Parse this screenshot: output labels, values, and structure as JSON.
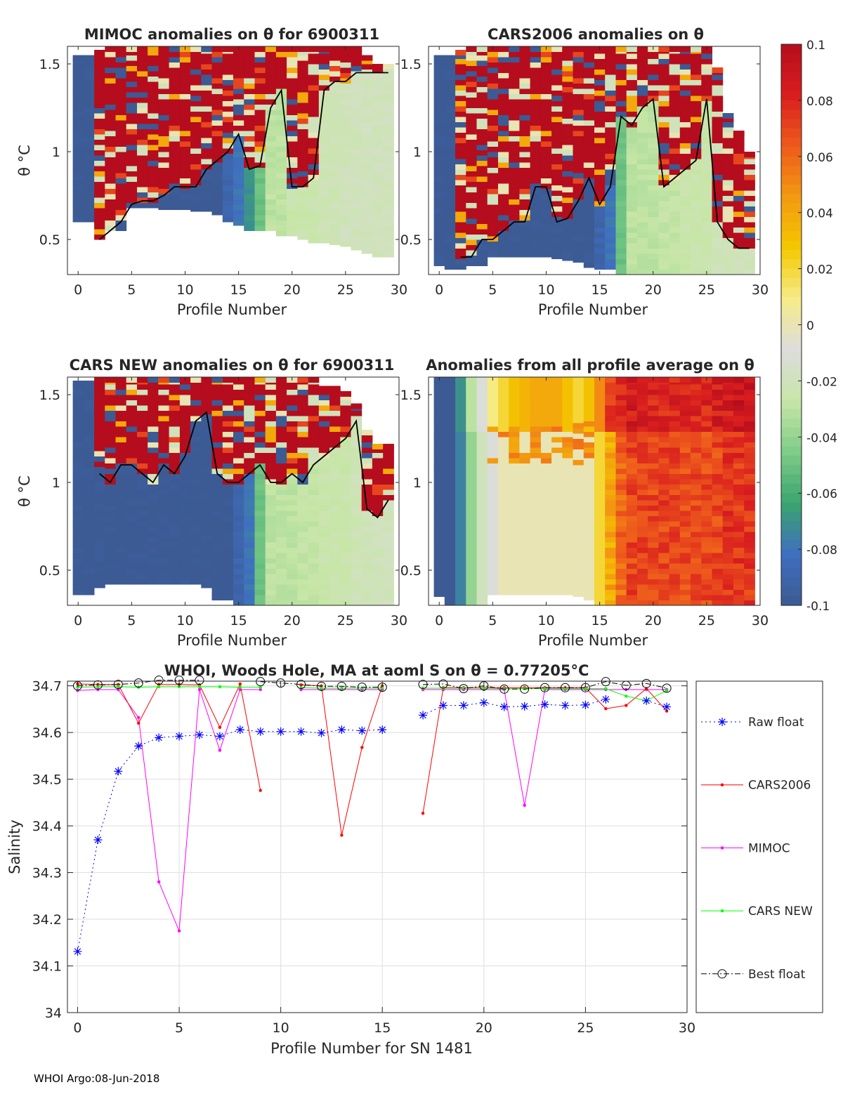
{
  "colors": {
    "axis": "#262626",
    "grid": "#dedede",
    "raw_float": "#0000ff",
    "cars2006": "#ff0000",
    "mimoc": "#ff00ff",
    "cars_new": "#00ff00",
    "best_float": "#000000",
    "empty": "#ffffff"
  },
  "colorbar": {
    "ticks": [
      "0.1",
      "0.08",
      "0.06",
      "0.04",
      "0.02",
      "0",
      "-0.02",
      "-0.04",
      "-0.06",
      "-0.08",
      "-0.1"
    ],
    "range": [
      -0.1,
      0.1
    ],
    "stops": [
      "#3c5a93",
      "#3f6fc0",
      "#3aa56e",
      "#7ecb88",
      "#c7e6a6",
      "#dcdcdc",
      "#f6ec8a",
      "#f4c800",
      "#f39a10",
      "#ee5a1c",
      "#d91e1e",
      "#b50d1d"
    ]
  },
  "chart_data": [
    {
      "type": "heatmap",
      "id": "mimoc",
      "title": "MIMOC anomalies on θ  for 6900311",
      "xlabel": "Profile Number",
      "ylabel": "θ °C",
      "xlim": [
        -1,
        30
      ],
      "ylim": [
        0.3,
        1.6
      ],
      "xticks": [
        0,
        5,
        10,
        15,
        20,
        25,
        30
      ],
      "yticks": [
        0.5,
        1,
        1.5
      ],
      "bottom_theta": [
        0.6,
        0.6,
        0.5,
        0.55,
        0.55,
        0.68,
        0.68,
        0.68,
        0.67,
        0.67,
        0.67,
        0.66,
        0.66,
        0.64,
        0.6,
        0.58,
        0.55,
        0.55,
        0.55,
        0.52,
        0.52,
        0.5,
        0.48,
        0.48,
        0.47,
        0.46,
        0.44,
        0.42,
        0.4,
        0.4
      ],
      "top_theta": [
        1.55,
        1.55,
        1.58,
        1.6,
        1.6,
        1.6,
        1.6,
        1.6,
        1.6,
        1.6,
        1.6,
        1.6,
        1.6,
        1.6,
        1.6,
        1.6,
        1.6,
        1.6,
        1.6,
        1.6,
        1.6,
        1.6,
        1.6,
        1.6,
        1.6,
        1.6,
        1.6,
        1.55,
        1.5,
        1.5
      ],
      "column_mean_anomaly": [
        -0.1,
        -0.1,
        0.06,
        0.07,
        0.07,
        0.07,
        0.07,
        0.07,
        0.06,
        0.06,
        0.07,
        0.06,
        0.06,
        0.06,
        0.06,
        0.05,
        0.05,
        0.05,
        -0.05,
        -0.03,
        -0.03,
        0.06,
        0.06,
        -0.025,
        -0.025,
        -0.025,
        -0.02,
        -0.02,
        -0.02,
        -0.02
      ],
      "base_anomaly": [
        -0.1,
        -0.1,
        -0.1,
        -0.1,
        -0.1,
        -0.1,
        -0.1,
        -0.1,
        -0.1,
        -0.1,
        -0.1,
        -0.1,
        -0.1,
        -0.1,
        -0.09,
        -0.08,
        -0.07,
        -0.05,
        -0.03,
        -0.03,
        -0.025,
        -0.025,
        -0.025,
        -0.022,
        -0.022,
        -0.02,
        -0.02,
        -0.02,
        -0.02,
        -0.02
      ],
      "mix_top_theta": [
        1.6,
        1.6,
        0.5,
        0.55,
        0.6,
        0.7,
        0.72,
        0.72,
        0.75,
        0.8,
        0.8,
        0.8,
        0.9,
        0.95,
        1.0,
        1.1,
        0.9,
        0.92,
        1.25,
        1.35,
        0.8,
        0.8,
        0.85,
        1.35,
        1.4,
        1.4,
        1.45,
        1.45,
        1.45,
        1.45
      ]
    },
    {
      "type": "heatmap",
      "id": "cars2006",
      "title": "CARS2006 anomalies on θ",
      "xlabel": "Profile Number",
      "ylabel": "",
      "xlim": [
        -1,
        30
      ],
      "ylim": [
        0.3,
        1.6
      ],
      "xticks": [
        0,
        5,
        10,
        15,
        20,
        25,
        30
      ],
      "yticks": [
        0.5,
        1,
        1.5
      ],
      "bottom_theta": [
        0.35,
        0.33,
        0.33,
        0.35,
        0.35,
        0.4,
        0.4,
        0.4,
        0.4,
        0.4,
        0.4,
        0.39,
        0.38,
        0.37,
        0.34,
        0.33,
        0.33,
        0.3,
        0.3,
        0.3,
        0.3,
        0.3,
        0.3,
        0.3,
        0.3,
        0.3,
        0.3,
        0.3,
        0.3,
        0.3
      ],
      "top_theta": [
        1.55,
        1.55,
        1.58,
        1.6,
        1.6,
        1.6,
        1.6,
        1.6,
        1.6,
        1.6,
        1.6,
        1.6,
        1.6,
        1.6,
        1.6,
        1.6,
        1.6,
        1.6,
        1.6,
        1.6,
        1.6,
        1.6,
        1.6,
        1.6,
        1.6,
        1.6,
        1.48,
        1.22,
        1.12,
        1.0
      ],
      "base_anomaly": [
        -0.1,
        -0.1,
        -0.1,
        -0.1,
        -0.1,
        -0.1,
        -0.1,
        -0.1,
        -0.1,
        -0.1,
        -0.1,
        -0.1,
        -0.1,
        -0.1,
        -0.1,
        -0.09,
        -0.08,
        -0.05,
        -0.03,
        -0.03,
        -0.03,
        -0.028,
        -0.028,
        -0.025,
        -0.025,
        -0.025,
        -0.022,
        -0.022,
        -0.02,
        -0.02
      ],
      "mix_top_theta": [
        1.6,
        1.6,
        0.4,
        0.4,
        0.5,
        0.5,
        0.55,
        0.6,
        0.6,
        0.8,
        0.8,
        0.6,
        0.62,
        0.72,
        0.85,
        0.7,
        0.8,
        1.2,
        1.15,
        1.25,
        1.3,
        0.8,
        0.85,
        0.9,
        0.95,
        1.3,
        0.6,
        0.5,
        0.45,
        0.45
      ]
    },
    {
      "type": "heatmap",
      "id": "cars_new",
      "title": "CARS NEW anomalies on θ for 6900311",
      "xlabel": "Profile Number",
      "ylabel": "θ °C",
      "xlim": [
        -1,
        30
      ],
      "ylim": [
        0.3,
        1.6
      ],
      "xticks": [
        0,
        5,
        10,
        15,
        20,
        25,
        30
      ],
      "yticks": [
        0.5,
        1,
        1.5
      ],
      "bottom_theta": [
        0.36,
        0.36,
        0.4,
        0.42,
        0.42,
        0.42,
        0.42,
        0.42,
        0.42,
        0.42,
        0.42,
        0.42,
        0.4,
        0.33,
        0.33,
        0.3,
        0.3,
        0.3,
        0.3,
        0.3,
        0.3,
        0.3,
        0.3,
        0.3,
        0.3,
        0.3,
        0.3,
        0.3,
        0.3,
        0.3
      ],
      "top_theta": [
        1.58,
        1.58,
        1.6,
        1.6,
        1.6,
        1.6,
        1.6,
        1.6,
        1.6,
        1.6,
        1.6,
        1.6,
        1.6,
        1.6,
        1.6,
        1.6,
        1.6,
        1.6,
        1.6,
        1.6,
        1.6,
        1.6,
        1.6,
        1.55,
        1.55,
        1.52,
        1.45,
        1.3,
        1.22,
        1.22
      ],
      "base_anomaly": [
        -0.1,
        -0.1,
        -0.1,
        -0.1,
        -0.1,
        -0.1,
        -0.1,
        -0.1,
        -0.1,
        -0.1,
        -0.1,
        -0.1,
        -0.1,
        -0.1,
        -0.1,
        -0.09,
        -0.08,
        -0.05,
        -0.03,
        -0.03,
        -0.03,
        -0.028,
        -0.028,
        -0.025,
        -0.025,
        -0.025,
        -0.022,
        -0.022,
        -0.02,
        -0.02
      ],
      "mix_top_theta": [
        1.6,
        1.6,
        1.05,
        1.0,
        1.1,
        1.1,
        1.05,
        1.0,
        1.1,
        1.05,
        1.15,
        1.35,
        1.4,
        1.05,
        1.0,
        1.0,
        1.05,
        1.1,
        1.0,
        1.0,
        1.05,
        1.0,
        1.1,
        1.15,
        1.2,
        1.25,
        1.35,
        0.85,
        0.8,
        0.9
      ]
    },
    {
      "type": "heatmap",
      "id": "profile_avg",
      "title": "Anomalies from all profile average on θ",
      "xlabel": "Profile Number",
      "ylabel": "",
      "xlim": [
        -1,
        30
      ],
      "ylim": [
        0.3,
        1.6
      ],
      "xticks": [
        0,
        5,
        10,
        15,
        20,
        25,
        30
      ],
      "yticks": [
        0.5,
        1,
        1.5
      ],
      "bottom_theta": [
        0.35,
        0.3,
        0.3,
        0.3,
        0.3,
        0.36,
        0.36,
        0.36,
        0.36,
        0.36,
        0.36,
        0.36,
        0.36,
        0.35,
        0.33,
        0.3,
        0.3,
        0.3,
        0.3,
        0.3,
        0.3,
        0.3,
        0.3,
        0.3,
        0.3,
        0.3,
        0.3,
        0.3,
        0.3,
        0.3
      ],
      "top_theta": [
        1.6,
        1.6,
        1.6,
        1.6,
        1.6,
        1.6,
        1.6,
        1.6,
        1.6,
        1.6,
        1.6,
        1.6,
        1.6,
        1.6,
        1.6,
        1.6,
        1.6,
        1.6,
        1.6,
        1.6,
        1.6,
        1.6,
        1.6,
        1.6,
        1.6,
        1.6,
        1.6,
        1.6,
        1.6,
        1.6
      ],
      "column_mean_anomaly": [
        -0.1,
        -0.1,
        -0.075,
        -0.04,
        -0.02,
        -0.01,
        0.0,
        0.0,
        0.0,
        0.0,
        0.0,
        0.0,
        0.0,
        0.0,
        0.0,
        0.02,
        0.04,
        0.06,
        0.07,
        0.07,
        0.07,
        0.07,
        0.07,
        0.07,
        0.07,
        0.07,
        0.07,
        0.075,
        0.075,
        0.075
      ],
      "upper_anomaly_above_theta_1_3": [
        -0.1,
        -0.1,
        -0.07,
        -0.03,
        -0.01,
        0.01,
        0.02,
        0.03,
        0.035,
        0.04,
        0.04,
        0.04,
        0.03,
        0.02,
        0.03,
        0.05,
        0.07,
        0.08,
        0.085,
        0.085,
        0.08,
        0.08,
        0.08,
        0.08,
        0.08,
        0.08,
        0.085,
        0.085,
        0.09,
        0.09
      ]
    },
    {
      "type": "line",
      "id": "salinity",
      "title": "WHOI, Woods Hole, MA at aoml S on θ = 0.77205°C",
      "xlabel": "Profile Number for SN 1481",
      "ylabel": "Salinity",
      "xlim": [
        -0.5,
        30
      ],
      "ylim": [
        34.0,
        34.71
      ],
      "xticks": [
        0,
        5,
        10,
        15,
        20,
        25,
        30
      ],
      "yticks": [
        34.0,
        34.1,
        34.2,
        34.3,
        34.4,
        34.5,
        34.6,
        34.7
      ],
      "ytick_labels": [
        "34",
        "34.1",
        "34.2",
        "34.3",
        "34.4",
        "34.5",
        "34.6",
        "34.7"
      ],
      "legend_position": "outside-right",
      "series": [
        {
          "name": "Raw float",
          "style": "dotted-star",
          "x": [
            0,
            1,
            2,
            3,
            4,
            5,
            6,
            7,
            8,
            9,
            10,
            11,
            12,
            13,
            14,
            15,
            16,
            17,
            18,
            19,
            20,
            21,
            22,
            23,
            24,
            25,
            26,
            27,
            28,
            29
          ],
          "values": [
            34.131,
            34.37,
            34.517,
            34.571,
            34.589,
            34.592,
            34.595,
            34.592,
            34.606,
            34.602,
            34.602,
            34.602,
            34.599,
            34.606,
            34.604,
            34.606,
            null,
            34.637,
            34.658,
            34.658,
            34.664,
            34.655,
            34.656,
            34.66,
            34.658,
            34.659,
            34.671,
            null,
            34.668,
            34.655
          ]
        },
        {
          "name": "CARS2006",
          "style": "solid-dot",
          "x": [
            0,
            1,
            2,
            3,
            4,
            5,
            6,
            7,
            8,
            9,
            10,
            11,
            12,
            13,
            14,
            15,
            16,
            17,
            18,
            19,
            20,
            21,
            22,
            23,
            24,
            25,
            26,
            27,
            28,
            29
          ],
          "values": [
            34.704,
            34.703,
            34.703,
            34.62,
            34.703,
            34.703,
            34.702,
            34.611,
            34.704,
            34.476,
            null,
            34.702,
            34.7,
            34.38,
            34.568,
            34.7,
            null,
            34.427,
            34.696,
            34.696,
            34.696,
            34.696,
            34.696,
            34.696,
            34.696,
            34.696,
            34.651,
            34.658,
            34.694,
            34.646
          ]
        },
        {
          "name": "MIMOC",
          "style": "solid-dot",
          "x": [
            0,
            1,
            2,
            3,
            4,
            5,
            6,
            7,
            8,
            9,
            10,
            11,
            12,
            13,
            14,
            15,
            16,
            17,
            18,
            19,
            20,
            21,
            22,
            23,
            24,
            25,
            26,
            27,
            28,
            29
          ],
          "values": [
            34.69,
            34.692,
            34.692,
            34.632,
            34.28,
            34.175,
            34.692,
            34.562,
            34.692,
            34.692,
            null,
            34.692,
            34.692,
            34.692,
            34.692,
            34.692,
            null,
            34.692,
            34.692,
            34.692,
            34.692,
            34.692,
            34.444,
            34.692,
            34.692,
            34.692,
            34.692,
            34.692,
            34.692,
            34.692
          ]
        },
        {
          "name": "CARS NEW",
          "style": "solid-dot",
          "x": [
            0,
            1,
            2,
            3,
            4,
            5,
            6,
            7,
            8,
            9,
            10,
            11,
            12,
            13,
            14,
            15,
            16,
            17,
            18,
            19,
            20,
            21,
            22,
            23,
            24,
            25,
            26,
            27,
            28,
            29
          ],
          "values": [
            34.697,
            34.698,
            34.698,
            34.697,
            34.698,
            34.698,
            34.698,
            34.698,
            34.697,
            34.697,
            null,
            34.696,
            34.695,
            34.695,
            34.695,
            34.695,
            null,
            34.695,
            34.695,
            34.695,
            34.695,
            34.694,
            34.694,
            34.694,
            34.694,
            34.694,
            34.694,
            34.678,
            34.668,
            34.69
          ]
        },
        {
          "name": "Best float",
          "style": "dashdot-circle",
          "x": [
            0,
            1,
            2,
            3,
            4,
            5,
            6,
            7,
            8,
            9,
            10,
            11,
            12,
            13,
            14,
            15,
            16,
            17,
            18,
            19,
            20,
            21,
            22,
            23,
            24,
            25,
            26,
            27,
            28,
            29
          ],
          "values": [
            34.7,
            34.702,
            34.703,
            34.706,
            34.712,
            34.712,
            34.712,
            null,
            null,
            34.709,
            34.706,
            34.703,
            34.699,
            34.699,
            34.697,
            34.697,
            null,
            34.703,
            34.704,
            34.694,
            34.7,
            34.693,
            34.693,
            34.696,
            34.696,
            34.696,
            34.709,
            34.701,
            34.705,
            34.695
          ]
        }
      ]
    }
  ],
  "footer": {
    "text": "WHOI Argo:08-Jun-2018"
  }
}
